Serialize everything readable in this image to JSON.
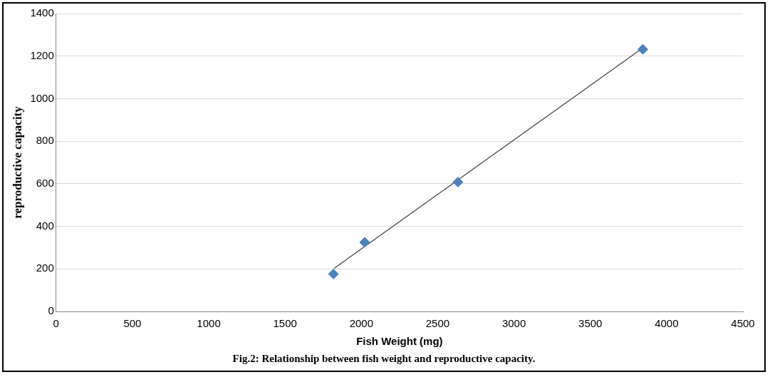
{
  "chart_data": {
    "type": "scatter",
    "xlabel": "Fish Weight (mg)",
    "ylabel": "reproductive capacity",
    "annotations": [
      "Fig.2: Relationship between fish weight and reproductive capacity."
    ],
    "xlim": [
      0,
      4500
    ],
    "xticks": [
      0,
      500,
      1000,
      1500,
      2000,
      2500,
      3000,
      3500,
      4000,
      4500
    ],
    "ylim": [
      0,
      1400
    ],
    "yticks": [
      0,
      200,
      400,
      600,
      800,
      1000,
      1200,
      1400
    ],
    "grid": "y",
    "legend": false,
    "marker": "diamond",
    "series": [
      {
        "color": "#4f81bd",
        "x": [
          1817,
          2022,
          2633,
          3844
        ],
        "values": [
          176,
          325,
          608,
          1232
        ]
      },
      {
        "type": "line",
        "color": "#404040",
        "x": [
          1822,
          3839
        ],
        "values": [
          203,
          1236
        ],
        "marker": "none",
        "line_style": "solid"
      }
    ]
  }
}
